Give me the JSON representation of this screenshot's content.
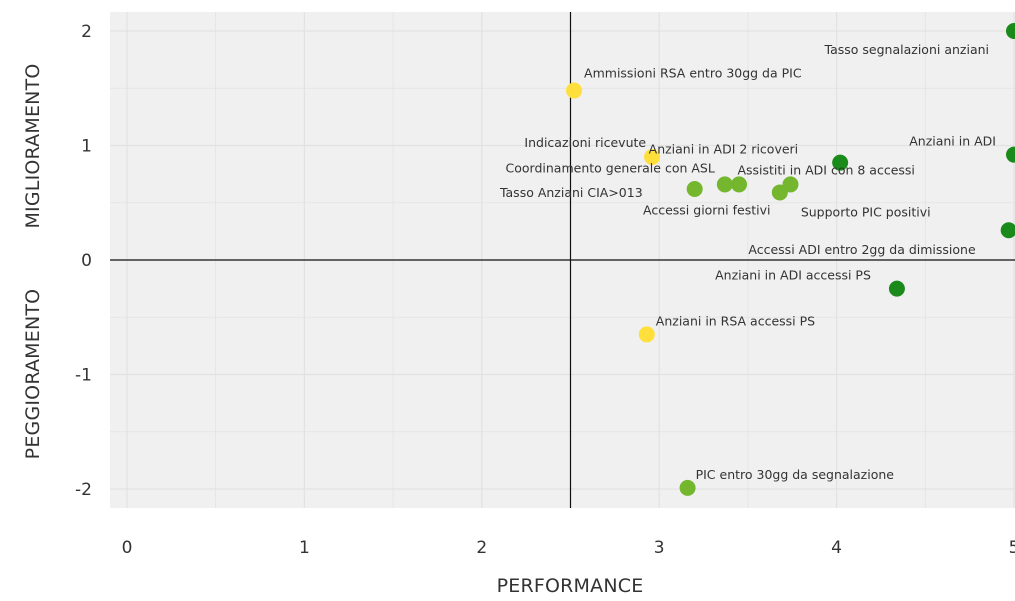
{
  "chart_data": {
    "type": "scatter",
    "title": "",
    "xlabel": "PERFORMANCE",
    "ylabel_top": "MIGLIORAMENTO",
    "ylabel_bottom": "PEGGIORAMENTO",
    "xlim": [
      -0.1,
      5.0
    ],
    "ylim": [
      -2.17,
      2.17
    ],
    "x_ticks": [
      "0",
      "1",
      "2",
      "3",
      "4",
      "5"
    ],
    "y_ticks": [
      "-2",
      "-1",
      "0",
      "1",
      "2"
    ],
    "reference_lines": {
      "x": 2.5,
      "y": 0
    },
    "grid": true,
    "colors": {
      "panel": "#f0f0f0",
      "grid": "#e2e2e2",
      "dark_green": "#1a8a1a",
      "light_green": "#74b72e",
      "yellow": "#ffdf3c"
    },
    "points": [
      {
        "label": "Tasso segnalazioni anziani",
        "x": 5.0,
        "y": 2.0,
        "color": "dark_green"
      },
      {
        "label": "Ammissioni RSA entro 30gg da PIC",
        "x": 2.52,
        "y": 1.48,
        "color": "yellow"
      },
      {
        "label": "Indicazioni ricevute",
        "x": 2.96,
        "y": 0.9,
        "color": "yellow"
      },
      {
        "label": "Anziani in ADI 2 ricoveri",
        "x": 4.02,
        "y": 0.85,
        "color": "dark_green"
      },
      {
        "label": "Anziani in ADI",
        "x": 5.0,
        "y": 0.92,
        "color": "dark_green"
      },
      {
        "label": "Coordinamento generale con ASL",
        "x": 3.37,
        "y": 0.66,
        "color": "light_green"
      },
      {
        "label": "Assistiti in ADI con 8 accessi",
        "x": 3.74,
        "y": 0.66,
        "color": "light_green"
      },
      {
        "label": "Tasso Anziani CIA>013",
        "x": 3.2,
        "y": 0.62,
        "color": "light_green"
      },
      {
        "label": "Accessi giorni festivi",
        "x": 3.45,
        "y": 0.66,
        "color": "light_green"
      },
      {
        "label": "Supporto PIC positivi",
        "x": 3.68,
        "y": 0.59,
        "color": "light_green"
      },
      {
        "label": "Accessi ADI entro 2gg da dimissione",
        "x": 4.97,
        "y": 0.26,
        "color": "dark_green"
      },
      {
        "label": "Anziani in ADI accessi PS",
        "x": 4.34,
        "y": -0.25,
        "color": "dark_green"
      },
      {
        "label": "Anziani in RSA accessi PS",
        "x": 2.93,
        "y": -0.65,
        "color": "yellow"
      },
      {
        "label": "PIC entro 30gg da segnalazione",
        "x": 3.16,
        "y": -1.99,
        "color": "light_green"
      }
    ]
  }
}
